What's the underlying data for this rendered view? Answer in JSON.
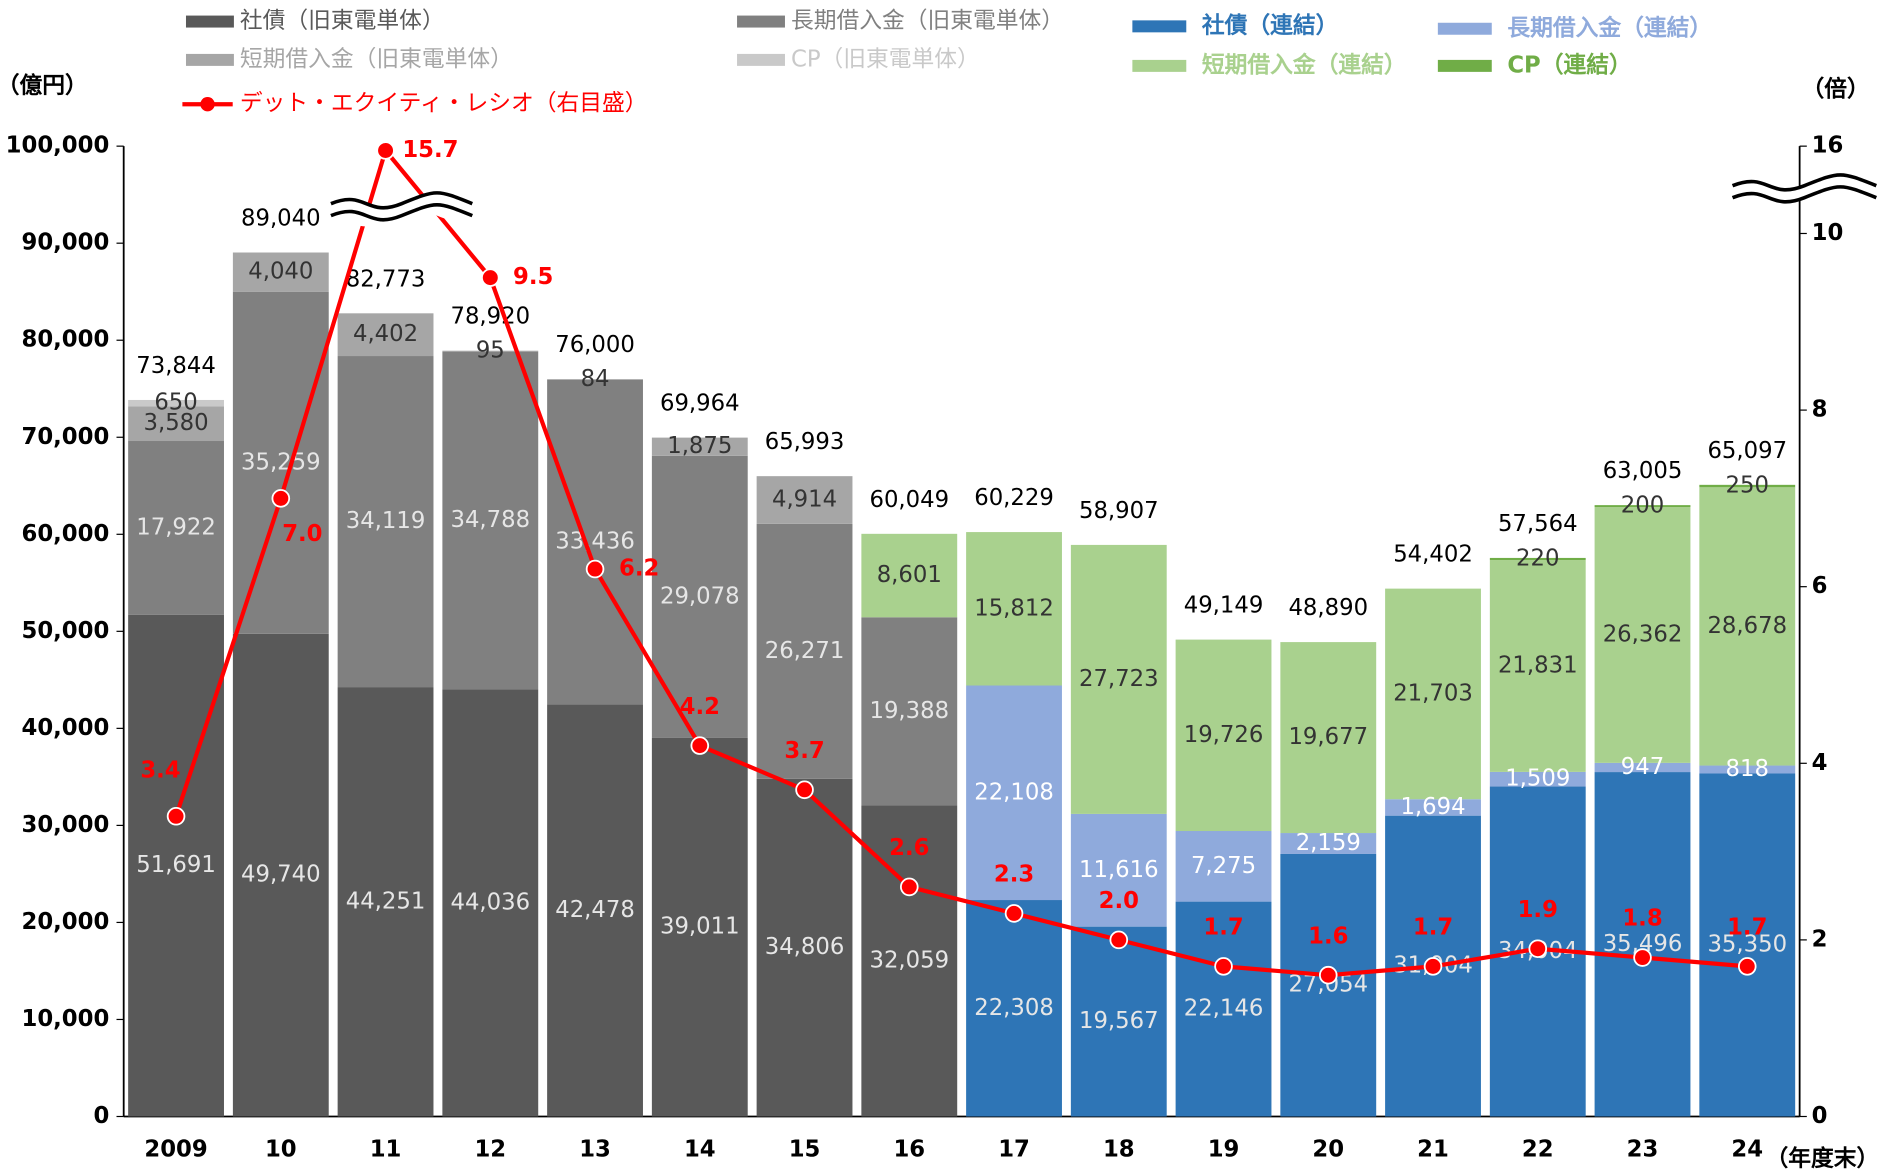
{
  "chart_data": {
    "type": "bar",
    "stacked": true,
    "categories": [
      "2009",
      "10",
      "11",
      "12",
      "13",
      "14",
      "15",
      "16",
      "17",
      "18",
      "19",
      "20",
      "21",
      "22",
      "23",
      "24"
    ],
    "x_label": "（年度末）",
    "y_label": "（億円）",
    "y2_label": "（倍）",
    "ylim": [
      0,
      100000
    ],
    "yticks": [
      0,
      {
        "value": 10000,
        "label": "10,000"
      },
      {
        "value": 20000,
        "label": "20,000"
      },
      {
        "value": 30000,
        "label": "30,000"
      },
      {
        "value": 40000,
        "label": "40,000"
      },
      {
        "value": 50000,
        "label": "50,000"
      },
      {
        "value": 60000,
        "label": "60,000"
      },
      {
        "value": 70000,
        "label": "70,000"
      },
      {
        "value": 80000,
        "label": "80,000"
      },
      {
        "value": 90000,
        "label": "90,000"
      },
      {
        "value": 100000,
        "label": "100,000"
      }
    ],
    "y2lim": [
      0,
      16
    ],
    "y2ticks": [
      0,
      2,
      4,
      6,
      8,
      10,
      16
    ],
    "y2_axis_break": true,
    "totals": [
      73844,
      89040,
      82773,
      78920,
      76000,
      69964,
      65993,
      60049,
      60229,
      58907,
      49149,
      48890,
      54402,
      57564,
      63005,
      65097
    ],
    "total_labels": [
      "73,844",
      "89,040",
      "82,773",
      "78,920",
      "76,000",
      "69,964",
      "65,993",
      "60,049",
      "60,229",
      "58,907",
      "49,149",
      "48,890",
      "54,402",
      "57,564",
      "63,005",
      "65,097"
    ],
    "series": [
      {
        "name": "社債（旧東電単体）",
        "color": "#595959",
        "label_color": "#e6e6e6",
        "values": [
          51691,
          49740,
          44251,
          44036,
          42478,
          39011,
          34806,
          32059,
          null,
          null,
          null,
          null,
          null,
          null,
          null,
          null
        ],
        "value_labels": [
          "51,691",
          "49,740",
          "44,251",
          "44,036",
          "42,478",
          "39,011",
          "34,806",
          "32,059",
          null,
          null,
          null,
          null,
          null,
          null,
          null,
          null
        ]
      },
      {
        "name": "長期借入金（旧東電単体）",
        "color": "#808080",
        "label_color": "#e6e6e6",
        "values": [
          17922,
          35259,
          34119,
          34788,
          33436,
          29078,
          26271,
          19388,
          null,
          null,
          null,
          null,
          null,
          null,
          null,
          null
        ],
        "value_labels": [
          "17,922",
          "35,259",
          "34,119",
          "34,788",
          "33,436",
          "29,078",
          "26,271",
          "19,388",
          null,
          null,
          null,
          null,
          null,
          null,
          null,
          null
        ]
      },
      {
        "name": "短期借入金（旧東電単体）",
        "color": "#a6a6a6",
        "label_color": "#333333",
        "values": [
          3580,
          4040,
          4402,
          95,
          84,
          1875,
          4914,
          null,
          null,
          null,
          null,
          null,
          null,
          null,
          null,
          null
        ],
        "value_labels": [
          "3,580",
          "4,040",
          "4,402",
          "95",
          "84",
          "1,875",
          "4,914",
          null,
          null,
          null,
          null,
          null,
          null,
          null,
          null,
          null
        ]
      },
      {
        "name": "CP（旧東電単体）",
        "color": "#c9c9c9",
        "label_color": "#333333",
        "values": [
          650,
          null,
          null,
          null,
          null,
          null,
          null,
          null,
          null,
          null,
          null,
          null,
          null,
          null,
          null,
          null
        ],
        "value_labels": [
          "650",
          null,
          null,
          null,
          null,
          null,
          null,
          null,
          null,
          null,
          null,
          null,
          null,
          null,
          null,
          null
        ]
      },
      {
        "name": "社債（連結）",
        "color": "#2e75b6",
        "label_color": "#e6e6e6",
        "values": [
          null,
          null,
          null,
          null,
          null,
          null,
          null,
          null,
          22308,
          19567,
          22146,
          27054,
          31004,
          34004,
          35496,
          35350
        ],
        "value_labels": [
          null,
          null,
          null,
          null,
          null,
          null,
          null,
          null,
          "22,308",
          "19,567",
          "22,146",
          "27,054",
          "31,004",
          "34,004",
          "35,496",
          "35,350"
        ]
      },
      {
        "name": "長期借入金（連結）",
        "color": "#8faadc",
        "label_color": "#ffffff",
        "values": [
          null,
          null,
          null,
          null,
          null,
          null,
          null,
          null,
          22108,
          11616,
          7275,
          2159,
          1694,
          1509,
          947,
          818
        ],
        "value_labels": [
          null,
          null,
          null,
          null,
          null,
          null,
          null,
          null,
          "22,108",
          "11,616",
          "7,275",
          "2,159",
          "1,694",
          "1,509",
          "947",
          "818"
        ]
      },
      {
        "name": "短期借入金（連結）",
        "color": "#a9d18e",
        "label_color": "#333333",
        "values": [
          null,
          null,
          null,
          null,
          null,
          null,
          null,
          8601,
          15812,
          27723,
          19726,
          19677,
          21703,
          21831,
          26362,
          28678
        ],
        "value_labels": [
          null,
          null,
          null,
          null,
          null,
          null,
          null,
          "8,601",
          "15,812",
          "27,723",
          "19,726",
          "19,677",
          "21,703",
          "21,831",
          "26,362",
          "28,678"
        ]
      },
      {
        "name": "CP（連結）",
        "color": "#70ad47",
        "label_color": "#333333",
        "values": [
          null,
          null,
          null,
          null,
          null,
          null,
          null,
          null,
          null,
          null,
          null,
          null,
          null,
          220,
          200,
          250
        ],
        "value_labels": [
          null,
          null,
          null,
          null,
          null,
          null,
          null,
          null,
          null,
          null,
          null,
          null,
          null,
          "220",
          "200",
          "250"
        ]
      },
      {
        "name": "デット・エクイティ・レシオ（右目盛）",
        "type": "line",
        "axis": "y2",
        "color": "#ff0000",
        "values": [
          3.4,
          7.0,
          15.7,
          9.5,
          6.2,
          4.2,
          3.7,
          2.6,
          2.3,
          2.0,
          1.7,
          1.6,
          1.7,
          1.9,
          1.8,
          1.7
        ],
        "value_labels": [
          "3.4",
          "7.0",
          "15.7",
          "9.5",
          "6.2",
          "4.2",
          "3.7",
          "2.6",
          "2.3",
          "2.0",
          "1.7",
          "1.6",
          "1.7",
          "1.9",
          "1.8",
          "1.7"
        ]
      }
    ]
  }
}
